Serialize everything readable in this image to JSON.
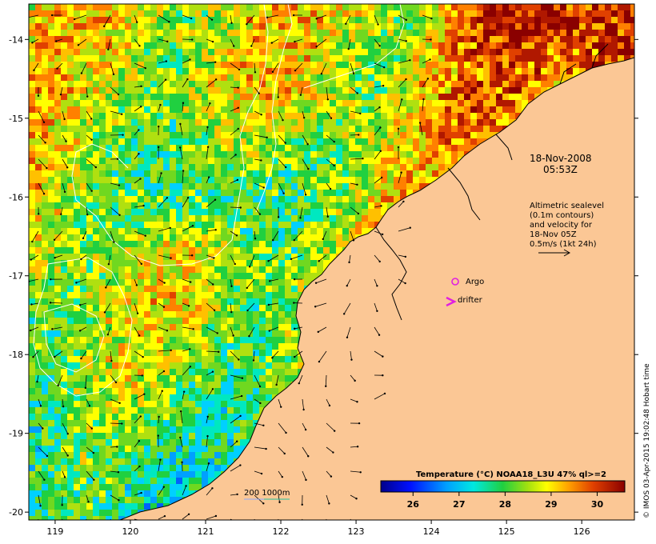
{
  "map": {
    "lon_ticks": [
      "119",
      "120",
      "121",
      "122",
      "123",
      "124",
      "125",
      "126"
    ],
    "lat_ticks": [
      "-14",
      "-15",
      "-16",
      "-17",
      "-18",
      "-19",
      "-20"
    ],
    "lon_range": [
      118.65,
      126.7
    ],
    "lat_range": [
      -20.1,
      -13.55
    ]
  },
  "annotations": {
    "date_line1": "18-Nov-2008",
    "date_line2": "05:53Z",
    "alt_lines": [
      "Altimetric sealevel",
      "(0.1m contours)",
      "and velocity for",
      "18-Nov 05Z",
      "0.5m/s (1kt 24h)"
    ],
    "argo_label": "Argo",
    "drifter_label": "drifter",
    "depth_label": "200  1000m"
  },
  "colorbar": {
    "title": "Temperature (°C) NOAA18_L3U 47% ql>=2",
    "ticks": [
      "26",
      "27",
      "28",
      "29",
      "30"
    ],
    "range": [
      25.3,
      30.6
    ]
  },
  "credit": "© IMOS 03-Apr-2015 19:02:48 Hobart time",
  "colors": {
    "land": "#fbc795",
    "argo": "#e020e0",
    "drifter": "#e020e0",
    "depth_200": "#88aaff",
    "depth_1000": "#20c0a0"
  }
}
